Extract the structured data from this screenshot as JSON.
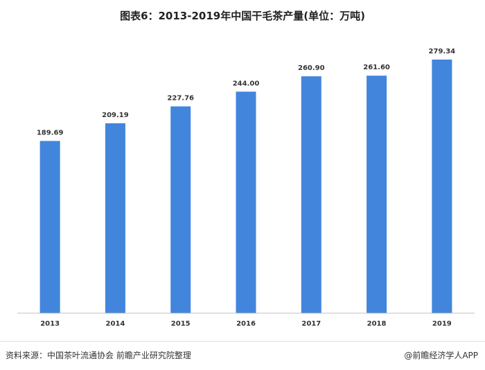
{
  "title": "图表6：2013-2019年中国干毛茶产量(单位：万吨)",
  "chart_data": {
    "type": "bar",
    "title": "图表6：2013-2019年中国干毛茶产量(单位：万吨)",
    "categories": [
      "2013",
      "2014",
      "2015",
      "2016",
      "2017",
      "2018",
      "2019"
    ],
    "values": [
      189.69,
      209.19,
      227.76,
      244.0,
      260.9,
      261.6,
      279.34
    ],
    "value_labels": [
      "189.69",
      "209.19",
      "227.76",
      "244.00",
      "260.90",
      "261.60",
      "279.34"
    ],
    "ylim": [
      0,
      290
    ],
    "grid": false,
    "bar_color": "#4285dc"
  },
  "footer": {
    "source": "资料来源：中国茶叶流通协会 前瞻产业研究院整理",
    "watermark": "@前瞻经济学人APP"
  }
}
